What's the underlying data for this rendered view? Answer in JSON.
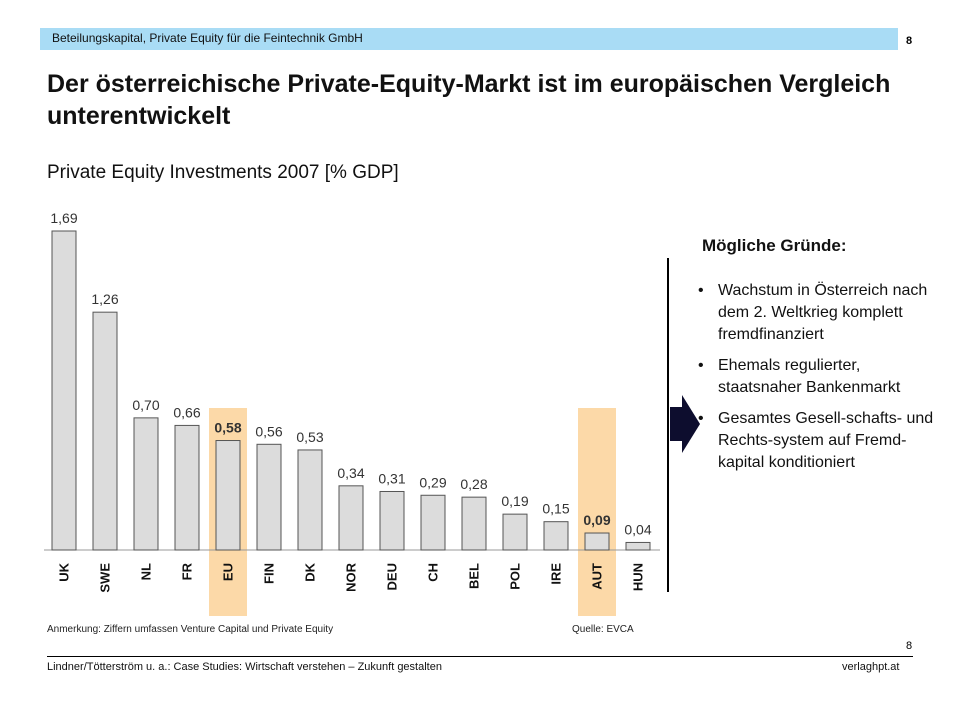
{
  "header": {
    "text": "Beteilungskapital, Private Equity für die Feintechnik GmbH",
    "page_number": "8"
  },
  "title": "Der österreichische Private-Equity-Markt ist im europäischen Vergleich unterentwickelt",
  "chart_data": {
    "type": "bar",
    "title": "Private Equity Investments 2007 [% GDP]",
    "categories": [
      "UK",
      "SWE",
      "NL",
      "FR",
      "EU",
      "FIN",
      "DK",
      "NOR",
      "DEU",
      "CH",
      "BEL",
      "POL",
      "IRE",
      "AUT",
      "HUN"
    ],
    "values": [
      1.69,
      1.26,
      0.7,
      0.66,
      0.58,
      0.56,
      0.53,
      0.34,
      0.31,
      0.29,
      0.28,
      0.19,
      0.15,
      0.09,
      0.04
    ],
    "value_labels": [
      "1,69",
      "1,26",
      "0,70",
      "0,66",
      "0,58",
      "0,56",
      "0,53",
      "0,34",
      "0,31",
      "0,29",
      "0,28",
      "0,19",
      "0,15",
      "0,09",
      "0,04"
    ],
    "highlighted": [
      "EU",
      "AUT"
    ],
    "ylim": [
      0,
      1.69
    ],
    "grid": false,
    "colors": {
      "bar": "#dcdcdc",
      "bar_stroke": "#555555",
      "highlight": "#fcd9a8"
    }
  },
  "reasons": {
    "title": "Mögliche Gründe:",
    "items": [
      "Wachstum in Österreich nach dem 2. Weltkrieg komplett fremdfinanziert",
      "Ehemals regulierter, staatsnaher Bankenmarkt",
      "Gesamtes Gesell-schafts- und Rechts-system auf Fremd-kapital konditioniert"
    ]
  },
  "note": "Anmerkung: Ziffern umfassen Venture Capital und Private Equity",
  "source": "Quelle: EVCA",
  "footer": {
    "left": "Lindner/Tötterström u. a.: Case Studies: Wirtschaft verstehen – Zukunft gestalten",
    "right": "verlaghpt.at",
    "page_number": "8"
  }
}
